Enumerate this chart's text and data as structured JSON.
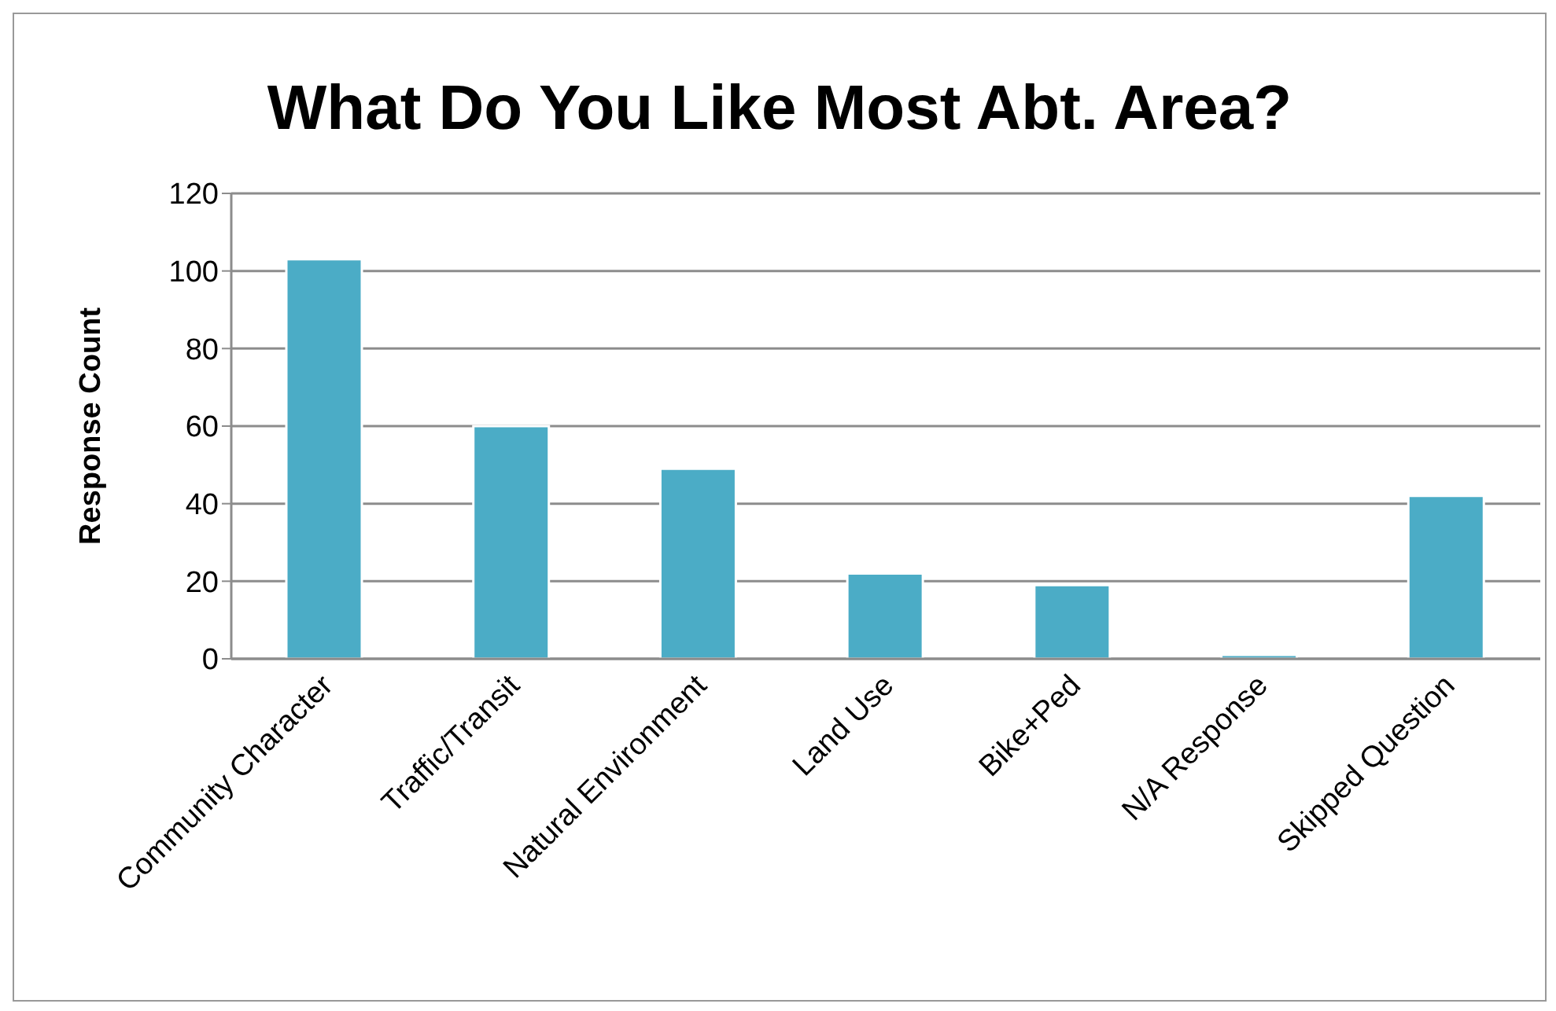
{
  "chart_data": {
    "type": "bar",
    "title": "What Do You Like Most Abt. Area?",
    "ylabel": "Response Count",
    "categories": [
      "Community Character",
      "Traffic/Transit",
      "Natural Environment",
      "Land Use",
      "Bike+Ped",
      "N/A Response",
      "Skipped Question"
    ],
    "values": [
      103,
      60,
      49,
      22,
      19,
      1,
      42
    ],
    "color": "#4bacc6",
    "ylim": [
      0,
      120
    ],
    "yticks": [
      0,
      20,
      40,
      60,
      80,
      100,
      120
    ],
    "grid": "y",
    "legend": false
  }
}
